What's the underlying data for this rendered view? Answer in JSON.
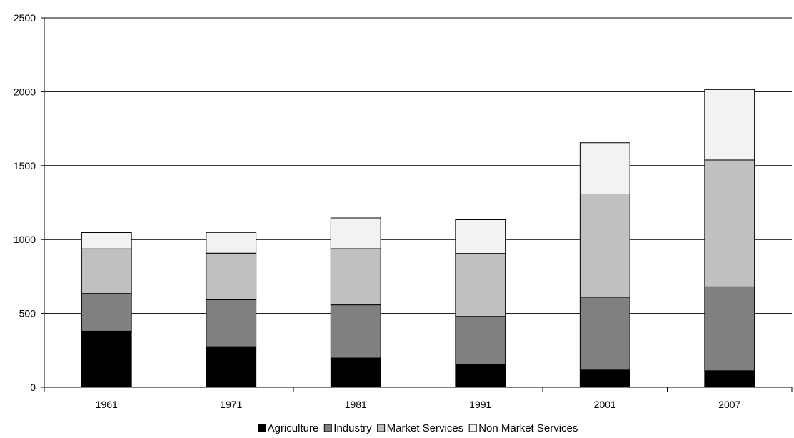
{
  "chart_data": {
    "type": "bar",
    "stacked": true,
    "categories": [
      "1961",
      "1971",
      "1981",
      "1991",
      "2001",
      "2007"
    ],
    "series": [
      {
        "name": "Agriculture",
        "color": "#000000",
        "values": [
          380,
          275,
          198,
          157,
          117,
          112
        ]
      },
      {
        "name": "Industry",
        "color": "#808080",
        "values": [
          255,
          318,
          360,
          323,
          493,
          568
        ]
      },
      {
        "name": "Market Services",
        "color": "#c0c0c0",
        "values": [
          302,
          315,
          380,
          426,
          698,
          858
        ]
      },
      {
        "name": "Non Market Services",
        "color": "#f2f2f2",
        "values": [
          110,
          140,
          208,
          228,
          347,
          477
        ]
      }
    ],
    "title": "",
    "xlabel": "",
    "ylabel": "",
    "ylim": [
      0,
      2500
    ],
    "yticks": [
      0,
      500,
      1000,
      1500,
      2000,
      2500
    ],
    "grid": true,
    "legend_position": "bottom"
  }
}
